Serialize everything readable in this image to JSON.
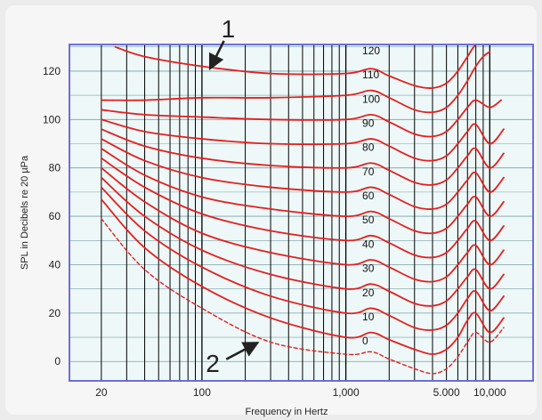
{
  "chart_data": {
    "type": "line",
    "title": "",
    "xlabel": "Frequency in Hertz",
    "ylabel": "SPL in Decibels re 20 µPa",
    "xscale": "log",
    "xlim": [
      12,
      20000
    ],
    "ylim": [
      -8,
      131
    ],
    "grid": true,
    "x_ticks": [
      {
        "value": 20,
        "label": "20"
      },
      {
        "value": 100,
        "label": "100"
      },
      {
        "value": 1000,
        "label": "1,000"
      },
      {
        "value": 5000,
        "label": "5.000"
      },
      {
        "value": 10000,
        "label": "10,000"
      }
    ],
    "y_ticks": [
      {
        "value": 0,
        "label": "0"
      },
      {
        "value": 20,
        "label": "20"
      },
      {
        "value": 40,
        "label": "40"
      },
      {
        "value": 60,
        "label": "60"
      },
      {
        "value": 80,
        "label": "80"
      },
      {
        "value": 100,
        "label": "100"
      },
      {
        "value": 120,
        "label": "120"
      }
    ],
    "series": [
      {
        "name": "0",
        "style": "dashed",
        "x": [
          20,
          40,
          100,
          300,
          1000,
          1500,
          2000,
          3000,
          4000,
          5000,
          6000,
          7000,
          8000,
          10000,
          12500
        ],
        "y": [
          59,
          38,
          22,
          8,
          3,
          4,
          1,
          -3,
          -5,
          -3,
          2,
          8,
          12,
          8,
          14
        ]
      },
      {
        "name": "10",
        "style": "solid",
        "x": [
          20,
          40,
          100,
          300,
          1000,
          1500,
          2000,
          3000,
          4000,
          5000,
          6000,
          7000,
          8000,
          10000,
          12500
        ],
        "y": [
          67,
          47,
          31,
          18,
          10,
          12,
          9,
          5,
          3,
          5,
          10,
          17,
          20,
          12,
          18
        ]
      },
      {
        "name": "20",
        "style": "solid",
        "x": [
          20,
          40,
          100,
          300,
          1000,
          1500,
          2000,
          3000,
          4000,
          5000,
          6000,
          7000,
          8000,
          10000,
          12500
        ],
        "y": [
          72,
          54,
          39,
          27,
          20,
          22,
          19,
          14,
          13,
          15,
          20,
          26,
          29,
          21,
          27
        ]
      },
      {
        "name": "30",
        "style": "solid",
        "x": [
          20,
          40,
          100,
          300,
          1000,
          1500,
          2000,
          3000,
          4000,
          5000,
          6000,
          7000,
          8000,
          10000,
          12500
        ],
        "y": [
          76,
          60,
          46,
          36,
          30,
          32,
          29,
          24,
          23,
          25,
          30,
          35,
          38,
          30,
          36
        ]
      },
      {
        "name": "40",
        "style": "solid",
        "x": [
          20,
          40,
          100,
          300,
          1000,
          1500,
          2000,
          3000,
          4000,
          5000,
          6000,
          7000,
          8000,
          10000,
          12500
        ],
        "y": [
          80,
          66,
          53,
          45,
          40,
          42,
          39,
          34,
          33,
          35,
          40,
          45,
          48,
          40,
          46
        ]
      },
      {
        "name": "50",
        "style": "solid",
        "x": [
          20,
          40,
          100,
          300,
          1000,
          1500,
          2000,
          3000,
          4000,
          5000,
          6000,
          7000,
          8000,
          10000,
          12500
        ],
        "y": [
          84,
          72,
          61,
          54,
          50,
          52,
          49,
          44,
          43,
          45,
          50,
          55,
          58,
          50,
          56
        ]
      },
      {
        "name": "60",
        "style": "solid",
        "x": [
          20,
          40,
          100,
          300,
          1000,
          1500,
          2000,
          3000,
          4000,
          5000,
          6000,
          7000,
          8000,
          10000,
          12500
        ],
        "y": [
          88,
          77,
          68,
          63,
          60,
          62,
          59,
          54,
          53,
          55,
          60,
          65,
          68,
          60,
          66
        ]
      },
      {
        "name": "70",
        "style": "solid",
        "x": [
          20,
          40,
          100,
          300,
          1000,
          1500,
          2000,
          3000,
          4000,
          5000,
          6000,
          7000,
          8000,
          10000,
          12500
        ],
        "y": [
          92,
          83,
          76,
          72,
          70,
          72,
          69,
          64,
          63,
          65,
          70,
          75,
          78,
          70,
          76
        ]
      },
      {
        "name": "80",
        "style": "solid",
        "x": [
          20,
          40,
          100,
          300,
          1000,
          1500,
          2000,
          3000,
          4000,
          5000,
          6000,
          7000,
          8000,
          10000,
          12500
        ],
        "y": [
          96,
          89,
          84,
          81,
          80,
          82,
          79,
          74,
          73,
          75,
          80,
          85,
          88,
          80,
          86
        ]
      },
      {
        "name": "90",
        "style": "solid",
        "x": [
          20,
          40,
          100,
          300,
          1000,
          1500,
          2000,
          3000,
          4000,
          5000,
          6000,
          7000,
          8000,
          10000,
          12500
        ],
        "y": [
          100,
          95,
          92,
          90,
          90,
          92,
          89,
          84,
          83,
          85,
          90,
          95,
          98,
          90,
          96
        ]
      },
      {
        "name": "100",
        "style": "solid",
        "x": [
          20,
          40,
          100,
          300,
          1000,
          1500,
          2000,
          3000,
          4000,
          5000,
          6000,
          7000,
          8000,
          10000,
          12000
        ],
        "y": [
          104,
          102,
          101,
          100,
          100,
          102,
          99,
          94,
          93,
          95,
          100,
          105,
          108,
          105,
          108
        ]
      },
      {
        "name": "110",
        "style": "solid",
        "x": [
          20,
          40,
          100,
          300,
          1000,
          1500,
          2000,
          3000,
          4000,
          5000,
          6000,
          7000,
          8000,
          9000,
          10000
        ],
        "y": [
          108,
          108,
          109,
          109,
          110,
          112,
          109,
          104,
          103,
          105,
          110,
          116,
          122,
          126,
          128
        ]
      },
      {
        "name": "120",
        "style": "solid",
        "x": [
          25,
          40,
          100,
          300,
          1000,
          1500,
          2000,
          3000,
          4000,
          5000,
          6000,
          7000,
          8000,
          9000,
          10000
        ],
        "y": [
          130,
          126,
          122,
          119,
          119,
          121,
          118,
          114,
          113,
          115,
          120,
          126,
          131,
          131,
          131
        ]
      }
    ],
    "annotations": [
      {
        "label": "1",
        "target_x": 110,
        "target_y": 120
      },
      {
        "label": "2",
        "target_x": 250,
        "target_y": 9
      }
    ],
    "colors": {
      "curve": "#e41f1f",
      "plot_background": "#eef8f8",
      "grid_vertical": "#000000",
      "grid_horizontal": "#7aa0a6",
      "frame": "#5f5fd8"
    }
  }
}
